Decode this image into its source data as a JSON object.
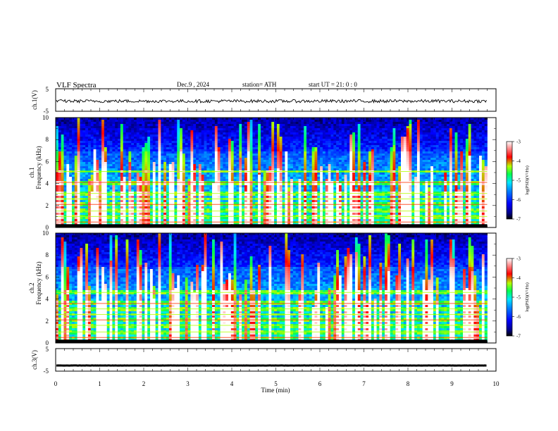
{
  "header": {
    "title": "VLF  Spectra",
    "date": "Dec.9  , 2024",
    "station": "station= ATH",
    "start_ut": "start  UT  =    21: 0   : 0"
  },
  "chart_data": [
    {
      "type": "line",
      "panel": "ch1-waveform",
      "ylabel": "ch.1(V)",
      "yticks": [
        "5",
        "-5"
      ],
      "ylim": [
        -5,
        5
      ],
      "xlim": [
        0,
        10
      ],
      "approx_level_v": -0.5,
      "color": "#000000"
    },
    {
      "type": "heatmap",
      "panel": "ch1-spectrogram",
      "ylabel_line1": "ch.1",
      "ylabel_line2": "Frequency  (kHz)",
      "yticks": [
        "0",
        "2",
        "4",
        "6",
        "8",
        "10"
      ],
      "ylim": [
        0,
        10
      ],
      "xlim": [
        0,
        10
      ],
      "end_time_min": 9.8,
      "bands_khz": [
        0.5,
        1.0,
        1.5,
        2.1,
        2.6,
        3.1,
        4.1,
        5.1
      ],
      "colorbar": {
        "label": "log(PSD)(V²/Hz)",
        "ticks": [
          "-3",
          "-4",
          "-5",
          "-6",
          "-7"
        ],
        "range": [
          -7,
          -3
        ]
      }
    },
    {
      "type": "heatmap",
      "panel": "ch2-spectrogram",
      "ylabel_line1": "ch.2",
      "ylabel_line2": "Frequency  (kHz)",
      "yticks": [
        "0",
        "2",
        "4",
        "6",
        "8",
        "10"
      ],
      "ylim": [
        0,
        10
      ],
      "xlim": [
        0,
        10
      ],
      "end_time_min": 9.8,
      "bands_khz": [
        0.5,
        1.0,
        1.6,
        2.1,
        2.6,
        3.1,
        3.6,
        4.6
      ],
      "colorbar": {
        "label": "log(PSD)(V²/Hz)",
        "ticks": [
          "-3",
          "-4",
          "-5",
          "-6",
          "-7"
        ],
        "range": [
          -7,
          -3
        ]
      }
    },
    {
      "type": "line",
      "panel": "ch3-waveform",
      "ylabel": "ch.3(V)",
      "yticks": [
        "5",
        "-5"
      ],
      "ylim": [
        -5,
        5
      ],
      "xlim": [
        0,
        10
      ],
      "approx_level_v": -2.5,
      "color": "#000000"
    }
  ],
  "xaxis": {
    "label": "Time  (min)",
    "ticks": [
      "0",
      "1",
      "2",
      "3",
      "4",
      "5",
      "6",
      "7",
      "8",
      "9",
      "10"
    ],
    "range": [
      0,
      10
    ]
  },
  "colormap": [
    "#000000",
    "#00008c",
    "#0000ff",
    "#0078ff",
    "#00e6ff",
    "#00ff50",
    "#b4ff00",
    "#ff0000",
    "#ffffff"
  ]
}
